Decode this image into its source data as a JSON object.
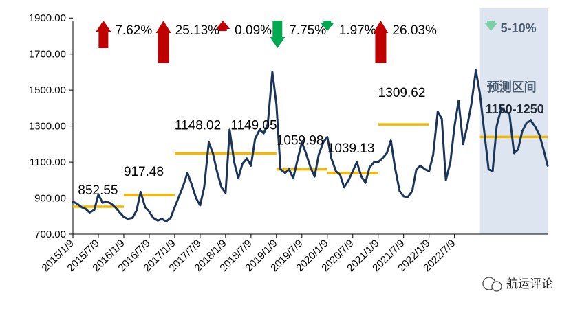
{
  "chart_data": {
    "type": "line",
    "ylim": [
      700,
      2000
    ],
    "y_ticks": [
      "700.00",
      "900.00",
      "1100.00",
      "1300.00",
      "1500.00",
      "1700.00",
      "1900.00"
    ],
    "x_ticks": [
      "2015/1/9",
      "2015/7/9",
      "2016/1/9",
      "2016/7/9",
      "2017/1/9",
      "2017/7/9",
      "2018/1/9",
      "2018/7/9",
      "2019/1/9",
      "2019/7/9",
      "2020/1/9",
      "2020/7/9",
      "2021/1/9",
      "2021/7/9",
      "2022/1/9",
      "2022/7/9"
    ],
    "colors": {
      "line": "#1b3558",
      "average": "#f5b800",
      "up": "#c00000",
      "down": "#00a84f",
      "forecast_down": "#7fd0a8",
      "forecast_band": "#dde6f0"
    },
    "series": [
      {
        "values": [
          [
            2015.0,
            880
          ],
          [
            2015.08,
            870
          ],
          [
            2015.17,
            850
          ],
          [
            2015.25,
            840
          ],
          [
            2015.33,
            820
          ],
          [
            2015.42,
            835
          ],
          [
            2015.5,
            920
          ],
          [
            2015.58,
            875
          ],
          [
            2015.67,
            880
          ],
          [
            2015.75,
            870
          ],
          [
            2015.83,
            850
          ],
          [
            2015.92,
            820
          ],
          [
            2016.0,
            795
          ],
          [
            2016.08,
            785
          ],
          [
            2016.17,
            790
          ],
          [
            2016.25,
            830
          ],
          [
            2016.33,
            935
          ],
          [
            2016.42,
            850
          ],
          [
            2016.5,
            825
          ],
          [
            2016.58,
            790
          ],
          [
            2016.67,
            775
          ],
          [
            2016.75,
            785
          ],
          [
            2016.83,
            770
          ],
          [
            2016.92,
            790
          ],
          [
            2017.0,
            850
          ],
          [
            2017.08,
            905
          ],
          [
            2017.17,
            970
          ],
          [
            2017.25,
            1040
          ],
          [
            2017.33,
            980
          ],
          [
            2017.42,
            900
          ],
          [
            2017.5,
            860
          ],
          [
            2017.58,
            960
          ],
          [
            2017.67,
            1210
          ],
          [
            2017.75,
            1150
          ],
          [
            2017.83,
            1050
          ],
          [
            2017.92,
            960
          ],
          [
            2018.0,
            930
          ],
          [
            2018.08,
            1280
          ],
          [
            2018.17,
            1100
          ],
          [
            2018.25,
            1010
          ],
          [
            2018.33,
            1090
          ],
          [
            2018.42,
            1120
          ],
          [
            2018.5,
            1080
          ],
          [
            2018.58,
            1230
          ],
          [
            2018.67,
            1280
          ],
          [
            2018.75,
            1260
          ],
          [
            2018.83,
            1310
          ],
          [
            2018.92,
            1600
          ],
          [
            2019.0,
            1420
          ],
          [
            2019.08,
            1060
          ],
          [
            2019.17,
            1040
          ],
          [
            2019.25,
            1060
          ],
          [
            2019.33,
            1010
          ],
          [
            2019.42,
            1120
          ],
          [
            2019.5,
            1210
          ],
          [
            2019.58,
            1150
          ],
          [
            2019.67,
            1070
          ],
          [
            2019.75,
            1020
          ],
          [
            2019.83,
            1140
          ],
          [
            2019.92,
            1210
          ],
          [
            2020.0,
            1240
          ],
          [
            2020.08,
            1120
          ],
          [
            2020.17,
            1050
          ],
          [
            2020.25,
            1030
          ],
          [
            2020.33,
            960
          ],
          [
            2020.42,
            1000
          ],
          [
            2020.5,
            1050
          ],
          [
            2020.58,
            1100
          ],
          [
            2020.67,
            1020
          ],
          [
            2020.75,
            985
          ],
          [
            2020.83,
            1070
          ],
          [
            2020.92,
            1100
          ],
          [
            2021.0,
            1100
          ],
          [
            2021.08,
            1120
          ],
          [
            2021.17,
            1150
          ],
          [
            2021.25,
            1220
          ],
          [
            2021.33,
            1070
          ],
          [
            2021.42,
            940
          ],
          [
            2021.5,
            910
          ],
          [
            2021.58,
            905
          ],
          [
            2021.67,
            940
          ],
          [
            2021.75,
            1060
          ],
          [
            2021.83,
            1080
          ],
          [
            2021.92,
            1060
          ],
          [
            2022.0,
            1050
          ],
          [
            2022.08,
            1140
          ],
          [
            2022.17,
            1380
          ],
          [
            2022.25,
            1340
          ],
          [
            2022.33,
            1000
          ],
          [
            2022.42,
            1100
          ],
          [
            2022.5,
            1300
          ],
          [
            2022.58,
            1440
          ],
          [
            2022.67,
            1200
          ],
          [
            2022.75,
            1300
          ],
          [
            2022.83,
            1420
          ],
          [
            2022.92,
            1610
          ],
          [
            2023.0,
            1480
          ],
          [
            2023.08,
            1280
          ],
          [
            2023.17,
            1060
          ],
          [
            2023.25,
            1050
          ],
          [
            2023.33,
            1300
          ],
          [
            2023.42,
            1400
          ],
          [
            2023.5,
            1380
          ],
          [
            2023.58,
            1370
          ],
          [
            2023.67,
            1150
          ],
          [
            2023.75,
            1170
          ],
          [
            2023.83,
            1270
          ],
          [
            2023.92,
            1320
          ],
          [
            2024.0,
            1330
          ],
          [
            2024.08,
            1300
          ],
          [
            2024.17,
            1250
          ],
          [
            2024.25,
            1170
          ],
          [
            2024.33,
            1080
          ]
        ]
      }
    ],
    "segments": [
      {
        "from": 2015.0,
        "to": 2016.0,
        "avg": 852.55,
        "avg_label": "852.55",
        "pct": "7.62%",
        "direction": "up",
        "arrow_size": "medium"
      },
      {
        "from": 2016.0,
        "to": 2017.0,
        "avg": 917.48,
        "avg_label": "917.48",
        "pct": "25.13%",
        "direction": "up",
        "arrow_size": "large"
      },
      {
        "from": 2017.0,
        "to": 2019.0,
        "avg": 1148.02,
        "avg_label": "1148.02",
        "pct": "0.09%",
        "direction": "up",
        "arrow_size": "small"
      },
      {
        "from": 2019.0,
        "to": 2020.0,
        "avg": 1059.98,
        "avg_label": "1059.98",
        "pct": "7.75%",
        "direction": "down",
        "arrow_size": "medium"
      },
      {
        "from": 2020.0,
        "to": 2021.0,
        "avg": 1039.13,
        "avg_label": "1039.13",
        "pct": "1.97%",
        "direction": "down",
        "arrow_size": "small"
      },
      {
        "from": 2021.0,
        "to": 2022.0,
        "avg": 1309.62,
        "avg_label": "1309.62",
        "pct": "26.03%",
        "direction": "up",
        "arrow_size": "large"
      }
    ],
    "extra_avg_label": "1149.05",
    "forecast": {
      "from": 2023.0,
      "to": 2024.0,
      "avg": 1240,
      "title": "预测区间",
      "range": "1150-1250",
      "pct": "5-10%",
      "direction": "down"
    }
  },
  "watermark": {
    "text": "航运评论"
  }
}
